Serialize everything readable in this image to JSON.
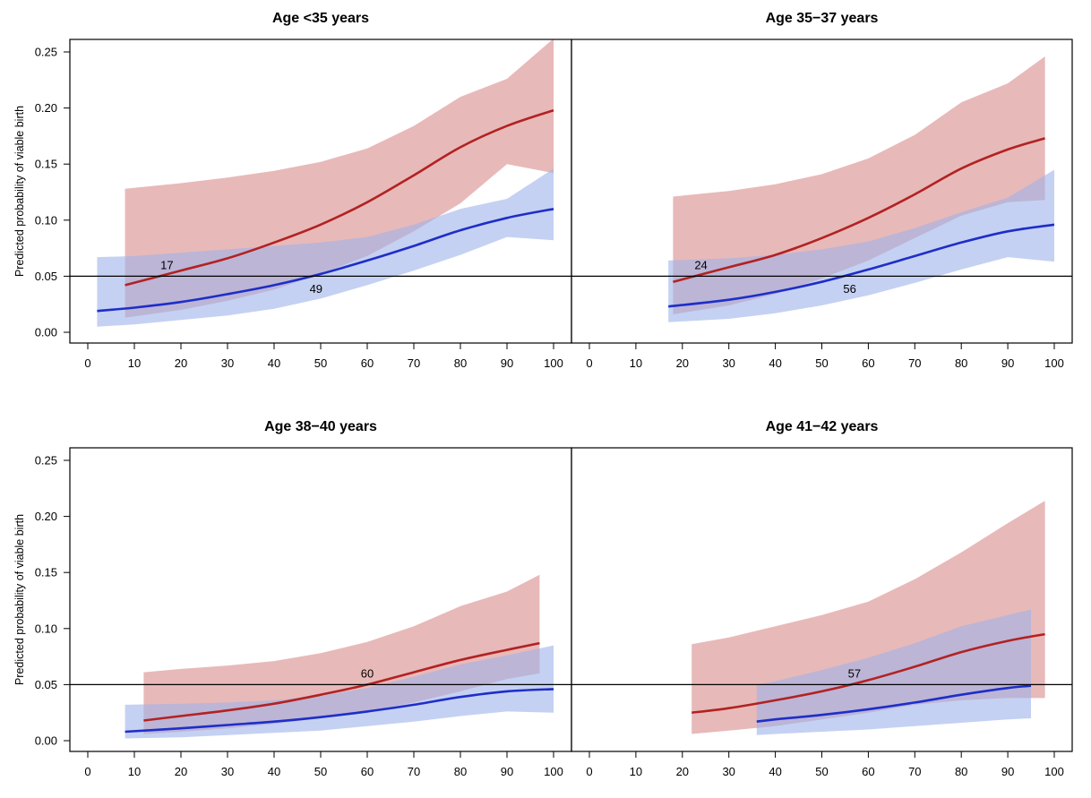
{
  "chart_data": [
    {
      "type": "line",
      "title": "Age <35 years",
      "xlabel": "",
      "ylabel": "Predicted probability of viable birth",
      "xlim": [
        0,
        100
      ],
      "ylim": [
        0,
        0.25
      ],
      "x_ticks": [
        "0",
        "10",
        "20",
        "30",
        "40",
        "50",
        "60",
        "70",
        "80",
        "90",
        "100"
      ],
      "y_ticks": [
        "0.00",
        "0.05",
        "0.10",
        "0.15",
        "0.20",
        "0.25"
      ],
      "reference_line": 0.05,
      "grid": false,
      "series": [
        {
          "color": "#b22222",
          "band_color": "#d88a8a",
          "x": [
            8,
            20,
            30,
            40,
            50,
            60,
            70,
            80,
            90,
            100
          ],
          "y": [
            0.042,
            0.055,
            0.066,
            0.08,
            0.096,
            0.116,
            0.14,
            0.165,
            0.184,
            0.198
          ],
          "lower": [
            0.013,
            0.02,
            0.028,
            0.038,
            0.052,
            0.068,
            0.09,
            0.115,
            0.15,
            0.142
          ],
          "upper": [
            0.128,
            0.133,
            0.138,
            0.144,
            0.152,
            0.164,
            0.184,
            0.21,
            0.226,
            0.262
          ],
          "label": "17",
          "label_x": 17,
          "label_y": 0.0595
        },
        {
          "color": "#1e2ec8",
          "band_color": "#9fb2ea",
          "x": [
            2,
            10,
            20,
            30,
            40,
            50,
            60,
            70,
            80,
            90,
            100
          ],
          "y": [
            0.019,
            0.022,
            0.027,
            0.034,
            0.042,
            0.052,
            0.064,
            0.077,
            0.091,
            0.102,
            0.11
          ],
          "lower": [
            0.005,
            0.007,
            0.011,
            0.015,
            0.021,
            0.03,
            0.042,
            0.055,
            0.069,
            0.085,
            0.082
          ],
          "upper": [
            0.067,
            0.068,
            0.071,
            0.074,
            0.077,
            0.08,
            0.085,
            0.096,
            0.11,
            0.119,
            0.146
          ],
          "label": "49",
          "label_x": 49,
          "label_y": 0.0385
        }
      ]
    },
    {
      "type": "line",
      "title": "Age 35−37 years",
      "xlabel": "",
      "ylabel": "",
      "xlim": [
        0,
        100
      ],
      "ylim": [
        0,
        0.25
      ],
      "x_ticks": [
        "0",
        "10",
        "20",
        "30",
        "40",
        "50",
        "60",
        "70",
        "80",
        "90",
        "100"
      ],
      "y_ticks": [
        "0.00",
        "0.05",
        "0.10",
        "0.15",
        "0.20",
        "0.25"
      ],
      "reference_line": 0.05,
      "grid": false,
      "series": [
        {
          "color": "#b22222",
          "band_color": "#d88a8a",
          "x": [
            18,
            30,
            40,
            50,
            60,
            70,
            80,
            90,
            98
          ],
          "y": [
            0.045,
            0.058,
            0.069,
            0.084,
            0.102,
            0.123,
            0.146,
            0.163,
            0.173
          ],
          "lower": [
            0.016,
            0.024,
            0.034,
            0.048,
            0.064,
            0.084,
            0.104,
            0.116,
            0.118
          ],
          "upper": [
            0.121,
            0.126,
            0.132,
            0.141,
            0.155,
            0.176,
            0.205,
            0.222,
            0.246
          ],
          "label": "24",
          "label_x": 24,
          "label_y": 0.0595
        },
        {
          "color": "#1e2ec8",
          "band_color": "#9fb2ea",
          "x": [
            17,
            30,
            40,
            50,
            60,
            70,
            80,
            90,
            100
          ],
          "y": [
            0.023,
            0.029,
            0.036,
            0.045,
            0.056,
            0.068,
            0.08,
            0.09,
            0.096
          ],
          "lower": [
            0.009,
            0.012,
            0.017,
            0.024,
            0.033,
            0.044,
            0.056,
            0.067,
            0.063
          ],
          "upper": [
            0.064,
            0.066,
            0.069,
            0.074,
            0.081,
            0.093,
            0.107,
            0.12,
            0.145
          ],
          "label": "56",
          "label_x": 56,
          "label_y": 0.0385
        }
      ]
    },
    {
      "type": "line",
      "title": "Age 38−40 years",
      "xlabel": "",
      "ylabel": "Predicted probability of viable birth",
      "xlim": [
        0,
        100
      ],
      "ylim": [
        0,
        0.25
      ],
      "x_ticks": [
        "0",
        "10",
        "20",
        "30",
        "40",
        "50",
        "60",
        "70",
        "80",
        "90",
        "100"
      ],
      "y_ticks": [
        "0.00",
        "0.05",
        "0.10",
        "0.15",
        "0.20",
        "0.25"
      ],
      "reference_line": 0.05,
      "grid": false,
      "series": [
        {
          "color": "#b22222",
          "band_color": "#d88a8a",
          "x": [
            12,
            20,
            30,
            40,
            50,
            60,
            70,
            80,
            90,
            97
          ],
          "y": [
            0.018,
            0.022,
            0.027,
            0.033,
            0.041,
            0.05,
            0.061,
            0.072,
            0.081,
            0.087
          ],
          "lower": [
            0.006,
            0.008,
            0.011,
            0.015,
            0.02,
            0.026,
            0.034,
            0.044,
            0.055,
            0.06
          ],
          "upper": [
            0.061,
            0.064,
            0.067,
            0.071,
            0.078,
            0.088,
            0.102,
            0.12,
            0.133,
            0.148
          ],
          "label": "60",
          "label_x": 60,
          "label_y": 0.0595
        },
        {
          "color": "#1e2ec8",
          "band_color": "#9fb2ea",
          "x": [
            8,
            20,
            30,
            40,
            50,
            60,
            70,
            80,
            90,
            100
          ],
          "y": [
            0.008,
            0.011,
            0.014,
            0.017,
            0.021,
            0.026,
            0.032,
            0.039,
            0.044,
            0.046
          ],
          "lower": [
            0.002,
            0.003,
            0.005,
            0.007,
            0.009,
            0.013,
            0.017,
            0.022,
            0.026,
            0.025
          ],
          "upper": [
            0.032,
            0.033,
            0.034,
            0.036,
            0.04,
            0.047,
            0.057,
            0.068,
            0.076,
            0.085
          ]
        }
      ]
    },
    {
      "type": "line",
      "title": "Age 41−42 years",
      "xlabel": "",
      "ylabel": "",
      "xlim": [
        0,
        100
      ],
      "ylim": [
        0,
        0.25
      ],
      "x_ticks": [
        "0",
        "10",
        "20",
        "30",
        "40",
        "50",
        "60",
        "70",
        "80",
        "90",
        "100"
      ],
      "y_ticks": [
        "0.00",
        "0.05",
        "0.10",
        "0.15",
        "0.20",
        "0.25"
      ],
      "reference_line": 0.05,
      "grid": false,
      "series": [
        {
          "color": "#b22222",
          "band_color": "#d88a8a",
          "x": [
            22,
            30,
            40,
            50,
            60,
            70,
            80,
            90,
            98
          ],
          "y": [
            0.025,
            0.029,
            0.036,
            0.044,
            0.054,
            0.066,
            0.079,
            0.089,
            0.095
          ],
          "lower": [
            0.006,
            0.009,
            0.013,
            0.019,
            0.025,
            0.032,
            0.036,
            0.038,
            0.038
          ],
          "upper": [
            0.086,
            0.092,
            0.102,
            0.112,
            0.124,
            0.144,
            0.168,
            0.194,
            0.214
          ],
          "label": "57",
          "label_x": 57,
          "label_y": 0.0595
        },
        {
          "color": "#1e2ec8",
          "band_color": "#9fb2ea",
          "x": [
            36,
            40,
            50,
            60,
            70,
            80,
            90,
            95
          ],
          "y": [
            0.017,
            0.019,
            0.023,
            0.028,
            0.034,
            0.041,
            0.047,
            0.049
          ],
          "lower": [
            0.005,
            0.006,
            0.008,
            0.01,
            0.013,
            0.016,
            0.019,
            0.02
          ],
          "upper": [
            0.05,
            0.053,
            0.063,
            0.074,
            0.087,
            0.102,
            0.112,
            0.117
          ]
        }
      ]
    }
  ]
}
